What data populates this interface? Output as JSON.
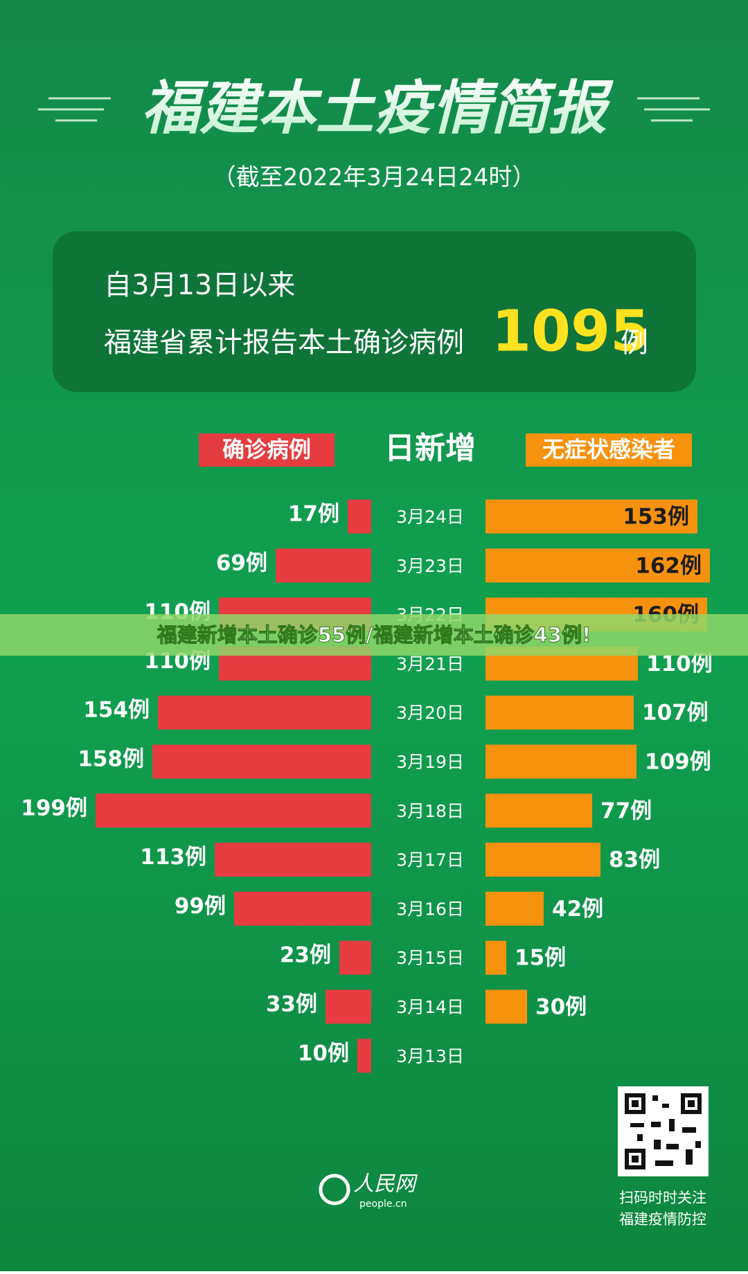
{
  "header": {
    "title": "福建本土疫情简报",
    "subtitle": "（截至2022年3月24日24时）"
  },
  "summary": {
    "line1": "自3月13日以来",
    "line2": "福建省累计报告本土确诊病例",
    "total": "1095",
    "unit": "例"
  },
  "banner": "福建新增本土确诊55例/福建新增本土确诊43例!",
  "chart_data": {
    "type": "butterfly",
    "center_header": "日新增",
    "categories": [
      "3月24日",
      "3月23日",
      "3月22日",
      "3月21日",
      "3月20日",
      "3月19日",
      "3月18日",
      "3月17日",
      "3月16日",
      "3月15日",
      "3月14日",
      "3月13日"
    ],
    "series": [
      {
        "name": "确诊病例",
        "color": "#e63b3f",
        "side": "left",
        "values": [
          17,
          69,
          110,
          110,
          154,
          158,
          199,
          113,
          99,
          23,
          33,
          10
        ],
        "value_labels": [
          "17例",
          "69例",
          "110例",
          "110例",
          "154例",
          "158例",
          "199例",
          "113例",
          "99例",
          "23例",
          "33例",
          "10例"
        ]
      },
      {
        "name": "无症状感染者",
        "color": "#f7920f",
        "side": "right",
        "values": [
          153,
          162,
          160,
          110,
          107,
          109,
          77,
          83,
          42,
          15,
          30,
          null
        ],
        "value_labels": [
          "153例",
          "162例",
          "160例",
          "110例",
          "107例",
          "109例",
          "77例",
          "83例",
          "42例",
          "15例",
          "30例",
          null
        ]
      }
    ]
  },
  "footer": {
    "logo": "人民网",
    "logo_sub": "people.cn",
    "qr_caption_1": "扫码时时关注",
    "qr_caption_2": "福建疫情防控"
  }
}
